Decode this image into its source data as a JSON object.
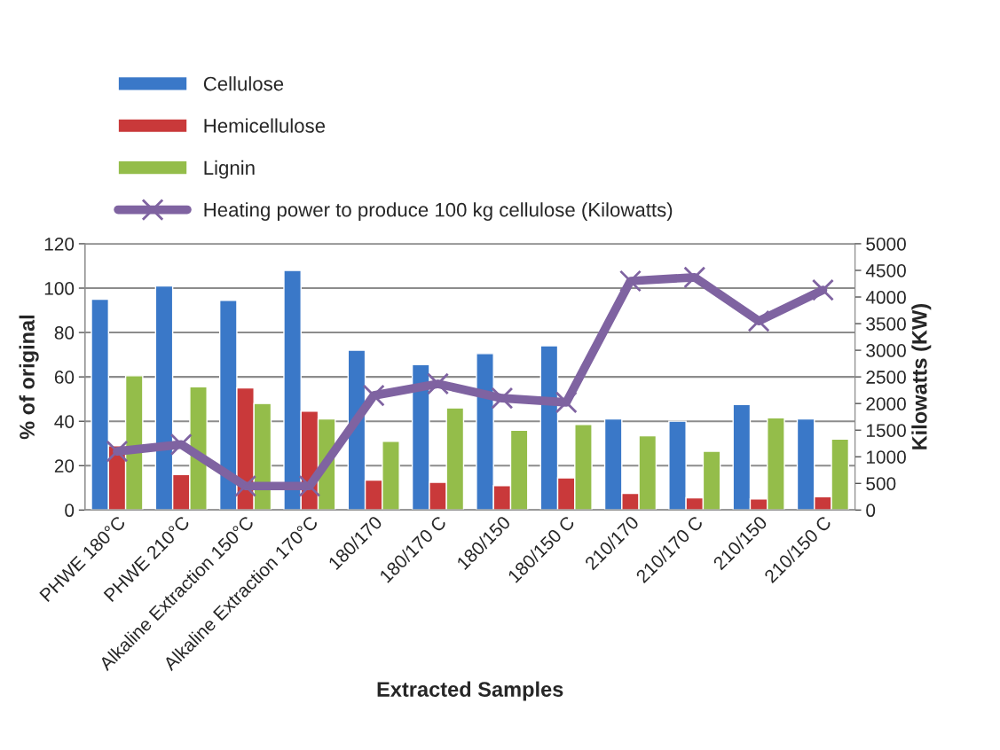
{
  "chart_data": {
    "type": "bar",
    "xlabel": "Extracted Samples",
    "ylabel": "% of original",
    "y2label": "Kilowatts (KW)",
    "categories": [
      "PHWE 180°C",
      "PHWE 210°C",
      "Alkaline Extraction 150°C",
      "Alkaline Extraction 170°C",
      "180/170",
      "180/170 C",
      "180/150",
      "180/150 C",
      "210/170",
      "210/170 C",
      "210/150",
      "210/150 C"
    ],
    "series": [
      {
        "name": "Cellulose",
        "color": "#3a78c8",
        "values": [
          95,
          101,
          94.5,
          108,
          72,
          65.5,
          70.5,
          74,
          41,
          40,
          47.5,
          41
        ]
      },
      {
        "name": "Hemicellulose",
        "color": "#c9393a",
        "values": [
          29,
          16,
          55,
          44.5,
          13.5,
          12.5,
          11,
          14.5,
          7.5,
          5.5,
          5,
          6
        ]
      },
      {
        "name": "Lignin",
        "color": "#94bd4a",
        "values": [
          60.5,
          55.5,
          48,
          41,
          31,
          46,
          36,
          38.5,
          33.5,
          26.5,
          41.5,
          32
        ]
      },
      {
        "name": "Heating power to produce 100 kg cellulose (Kilowatts)",
        "type": "line",
        "axis": "y2",
        "color": "#7f63a1",
        "marker": "cross",
        "values": [
          1100,
          1230,
          450,
          450,
          2150,
          2370,
          2100,
          2020,
          4300,
          4370,
          3550,
          4130
        ]
      }
    ],
    "ylim": [
      0,
      120
    ],
    "yticks": [
      0,
      20,
      40,
      60,
      80,
      100,
      120
    ],
    "y2lim": [
      0,
      5000
    ],
    "y2ticks": [
      0,
      500,
      1000,
      1500,
      2000,
      2500,
      3000,
      3500,
      4000,
      4500,
      5000
    ],
    "grid": "y",
    "legend": "top left"
  }
}
